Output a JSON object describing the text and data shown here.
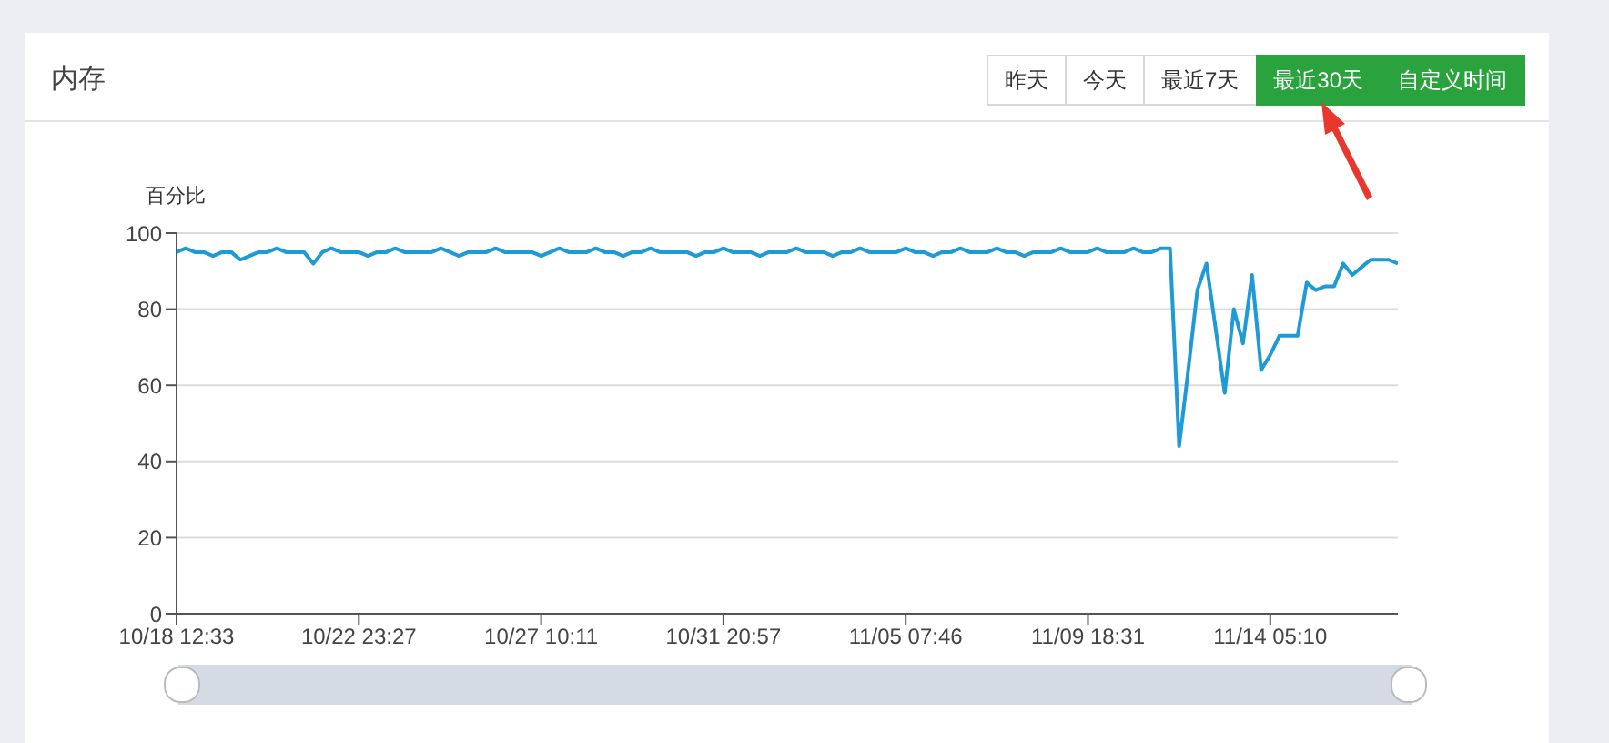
{
  "chart_data": {
    "type": "line",
    "title": "内存",
    "ylabel": "百分比",
    "annotations": [
      "昨天",
      "今天",
      "最近7天",
      "最近30天",
      "自定义时间"
    ],
    "categories": [
      "10/18 12:33",
      null,
      null,
      null,
      null,
      null,
      null,
      null,
      null,
      null,
      null,
      null,
      null,
      null,
      null,
      null,
      null,
      null,
      null,
      null,
      "10/22 23:27",
      null,
      null,
      null,
      null,
      null,
      null,
      null,
      null,
      null,
      null,
      null,
      null,
      null,
      null,
      null,
      null,
      null,
      null,
      null,
      "10/27 10:11",
      null,
      null,
      null,
      null,
      null,
      null,
      null,
      null,
      null,
      null,
      null,
      null,
      null,
      null,
      null,
      null,
      null,
      null,
      null,
      "10/31 20:57",
      null,
      null,
      null,
      null,
      null,
      null,
      null,
      null,
      null,
      null,
      null,
      null,
      null,
      null,
      null,
      null,
      null,
      null,
      null,
      "11/05 07:46",
      null,
      null,
      null,
      null,
      null,
      null,
      null,
      null,
      null,
      null,
      null,
      null,
      null,
      null,
      null,
      null,
      null,
      null,
      null,
      "11/09 18:31",
      null,
      null,
      null,
      null,
      null,
      null,
      null,
      null,
      null,
      null,
      null,
      null,
      null,
      null,
      null,
      null,
      null,
      null,
      null,
      "11/14 05:10",
      null,
      null,
      null,
      null,
      null,
      null,
      null,
      null,
      null,
      null,
      null,
      null,
      null,
      null
    ],
    "series": [
      {
        "color": "#1e9ad6",
        "values": [
          95,
          96,
          95,
          95,
          94,
          95,
          95,
          93,
          94,
          95,
          95,
          96,
          95,
          95,
          95,
          92,
          95,
          96,
          95,
          95,
          95,
          94,
          95,
          95,
          96,
          95,
          95,
          95,
          95,
          96,
          95,
          94,
          95,
          95,
          95,
          96,
          95,
          95,
          95,
          95,
          94,
          95,
          96,
          95,
          95,
          95,
          96,
          95,
          95,
          94,
          95,
          95,
          96,
          95,
          95,
          95,
          95,
          94,
          95,
          95,
          96,
          95,
          95,
          95,
          94,
          95,
          95,
          95,
          96,
          95,
          95,
          95,
          94,
          95,
          95,
          96,
          95,
          95,
          95,
          95,
          96,
          95,
          95,
          94,
          95,
          95,
          96,
          95,
          95,
          95,
          96,
          95,
          95,
          94,
          95,
          95,
          95,
          96,
          95,
          95,
          95,
          96,
          95,
          95,
          95,
          96,
          95,
          95,
          96,
          96,
          44,
          64,
          85,
          92,
          75,
          58,
          80,
          71,
          89,
          64,
          68,
          73,
          73,
          73,
          87,
          85,
          86,
          86,
          92,
          89,
          91,
          93,
          93,
          93,
          92
        ]
      }
    ],
    "ylim": [
      0,
      100
    ],
    "yticks": [
      0,
      20,
      40,
      60,
      80,
      100
    ],
    "grid": "y",
    "marker": "none",
    "line_style": "solid"
  }
}
